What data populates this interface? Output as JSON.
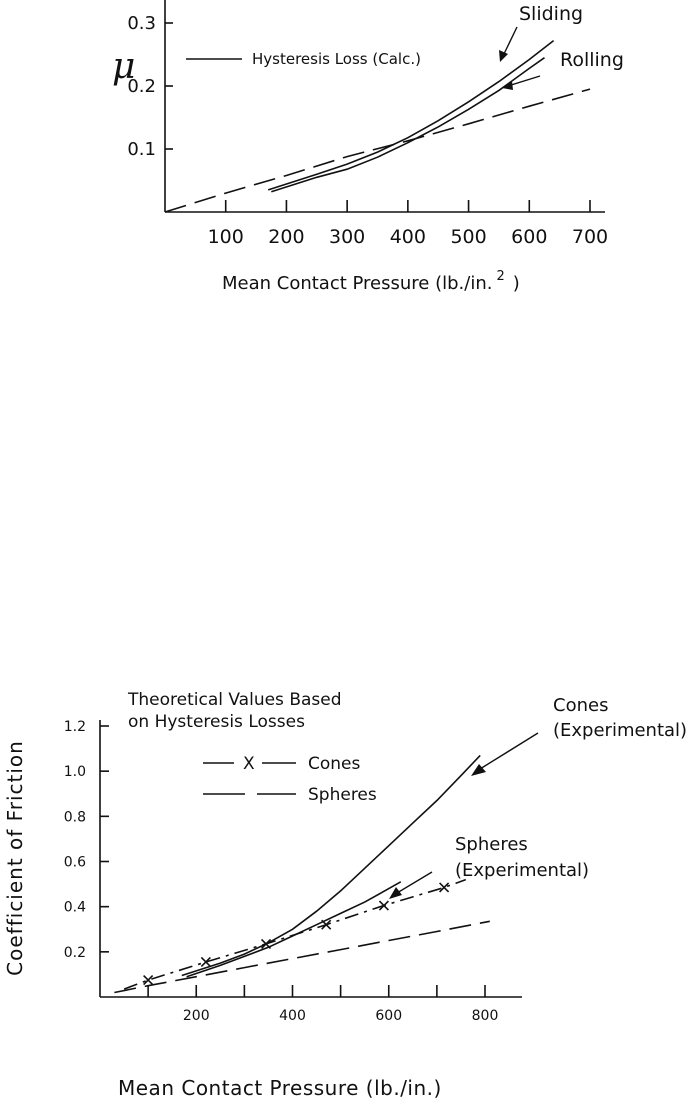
{
  "chart_data": [
    {
      "type": "line",
      "ylabel": "μ",
      "xlabel": "Mean Contact Pressure (lb./in.",
      "xlabel_sup": "2",
      "xlabel_close": ")",
      "xlim": [
        0,
        700
      ],
      "ylim": [
        0,
        0.33
      ],
      "xticks": [
        100,
        200,
        300,
        400,
        500,
        600,
        700
      ],
      "xtick_labels": [
        "100",
        "200",
        "300",
        "400",
        "500",
        "600",
        "700"
      ],
      "yticks": [
        0.1,
        0.2,
        0.3
      ],
      "ytick_labels": [
        "0.1",
        "0.2",
        "0.3"
      ],
      "legend": [
        {
          "label": "Hysteresis Loss (Calc.)",
          "style": "solid"
        }
      ],
      "annotations": [
        "Sliding",
        "Rolling"
      ],
      "series": [
        {
          "x": [
            170,
            250,
            300,
            350,
            400,
            450,
            500,
            550,
            600,
            640
          ],
          "y": [
            0.035,
            0.06,
            0.076,
            0.095,
            0.118,
            0.145,
            0.175,
            0.207,
            0.242,
            0.272
          ]
        },
        {
          "x": [
            175,
            250,
            300,
            350,
            400,
            450,
            500,
            550,
            600,
            625
          ],
          "y": [
            0.032,
            0.055,
            0.068,
            0.087,
            0.11,
            0.135,
            0.163,
            0.193,
            0.228,
            0.245
          ]
        },
        {
          "x": [
            0,
            100,
            200,
            300,
            400,
            500,
            600,
            700
          ],
          "y": [
            0.0,
            0.03,
            0.058,
            0.088,
            0.113,
            0.14,
            0.168,
            0.195
          ]
        }
      ]
    },
    {
      "type": "line",
      "ylabel": "Coefficient of Friction",
      "xlabel": "Mean Contact Pressure (lb./in.)",
      "xlim": [
        0,
        870
      ],
      "ylim": [
        0,
        1.25
      ],
      "xticks": [
        200,
        400,
        600,
        800
      ],
      "xtick_labels": [
        "200",
        "400",
        "600",
        "800"
      ],
      "minor_xticks": [
        100,
        300,
        500,
        700
      ],
      "yticks": [
        0.2,
        0.4,
        0.6,
        0.8,
        1.0,
        1.2
      ],
      "ytick_labels": [
        "0.2",
        "0.4",
        "0.6",
        "0.8",
        "1.0",
        "1.2"
      ],
      "legend_title": [
        "Theoretical Values Based",
        "on Hysteresis Losses"
      ],
      "legend": [
        {
          "label": "Cones",
          "style": "dashdot-x"
        },
        {
          "label": "Spheres",
          "style": "dashed"
        }
      ],
      "annotations": [
        {
          "lines": [
            "Cones",
            "(Experimental)"
          ]
        },
        {
          "lines": [
            "Spheres",
            "(Experimental)"
          ]
        }
      ],
      "series": [
        {
          "x": [
            170,
            250,
            300,
            350,
            400,
            450,
            500,
            550,
            600,
            650,
            700,
            750,
            790
          ],
          "y": [
            0.095,
            0.15,
            0.19,
            0.24,
            0.3,
            0.38,
            0.47,
            0.57,
            0.67,
            0.77,
            0.87,
            0.98,
            1.07
          ]
        },
        {
          "x": [
            180,
            250,
            300,
            350,
            400,
            450,
            500,
            550,
            600,
            625
          ],
          "y": [
            0.09,
            0.14,
            0.18,
            0.22,
            0.27,
            0.32,
            0.37,
            0.42,
            0.48,
            0.51
          ]
        },
        {
          "x": [
            50,
            100,
            220,
            345,
            470,
            590,
            715,
            760
          ],
          "y": [
            0.035,
            0.075,
            0.155,
            0.235,
            0.32,
            0.405,
            0.485,
            0.52
          ],
          "markers": [
            100,
            220,
            345,
            470,
            590,
            715
          ]
        },
        {
          "x": [
            30,
            100,
            200,
            300,
            400,
            500,
            600,
            700,
            810
          ],
          "y": [
            0.02,
            0.05,
            0.09,
            0.13,
            0.17,
            0.21,
            0.25,
            0.29,
            0.335
          ]
        }
      ]
    }
  ]
}
